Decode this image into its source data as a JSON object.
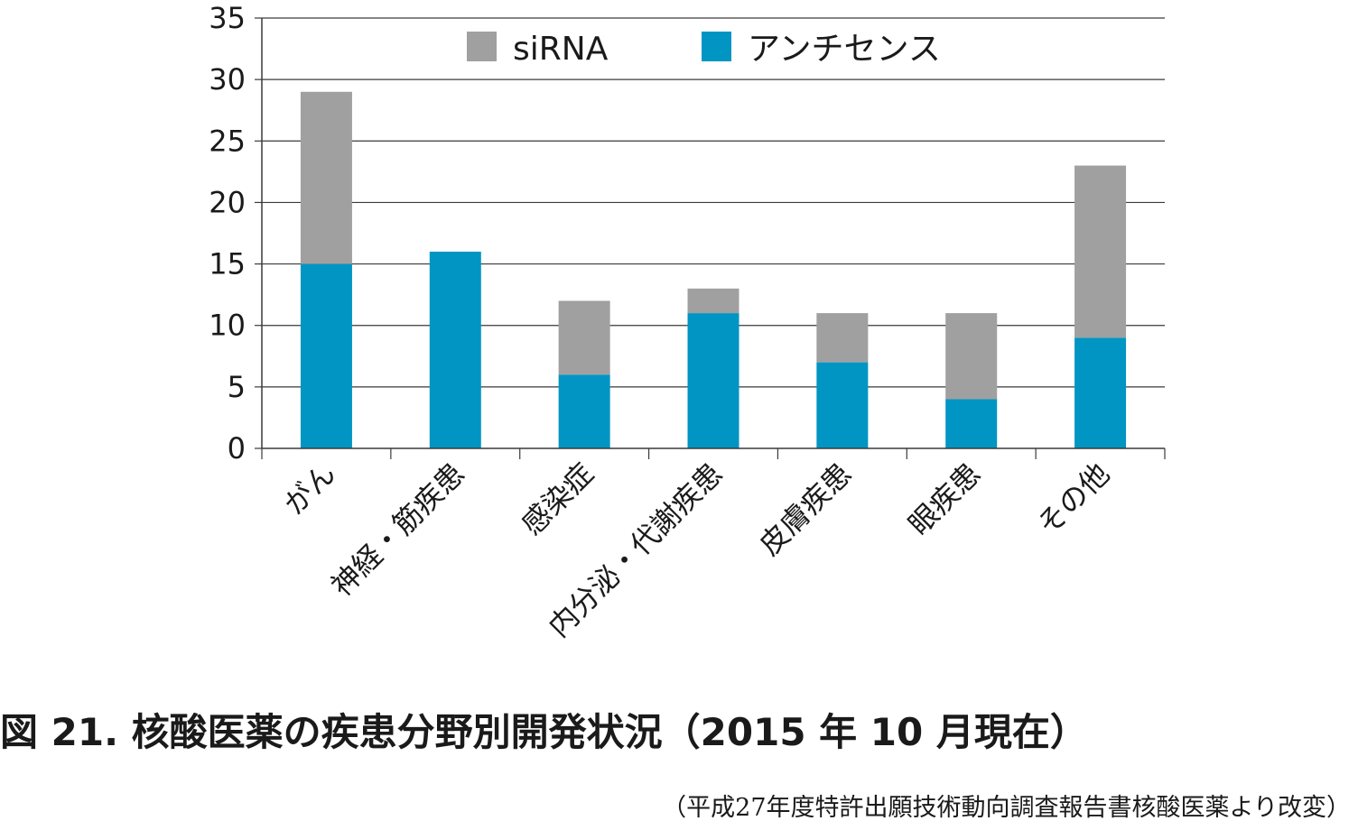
{
  "chart_data": {
    "type": "bar",
    "stacked": true,
    "categories": [
      "がん",
      "神経・筋疾患",
      "感染症",
      "内分泌・代謝疾患",
      "皮膚疾患",
      "眼疾患",
      "その他"
    ],
    "series": [
      {
        "name": "アンチセンス",
        "values": [
          15,
          16,
          6,
          11,
          7,
          4,
          9
        ],
        "color": "#0095c2"
      },
      {
        "name": "siRNA",
        "values": [
          14,
          0,
          6,
          2,
          4,
          7,
          14
        ],
        "color": "#a0a0a0"
      }
    ],
    "legend_order": [
      "siRNA",
      "アンチセンス"
    ],
    "legend_position": "top-center",
    "ylim": [
      0,
      35
    ],
    "yticks": [
      "0",
      "5",
      "10",
      "15",
      "20",
      "25",
      "30",
      "35"
    ],
    "grid": true,
    "xlabel": "",
    "ylabel": ""
  },
  "caption": "図 21.  核酸医薬の疾患分野別開発状況（2015 年 10 月現在）",
  "source": "（平成27年度特許出願技術動向調査報告書核酸医薬より改変）"
}
